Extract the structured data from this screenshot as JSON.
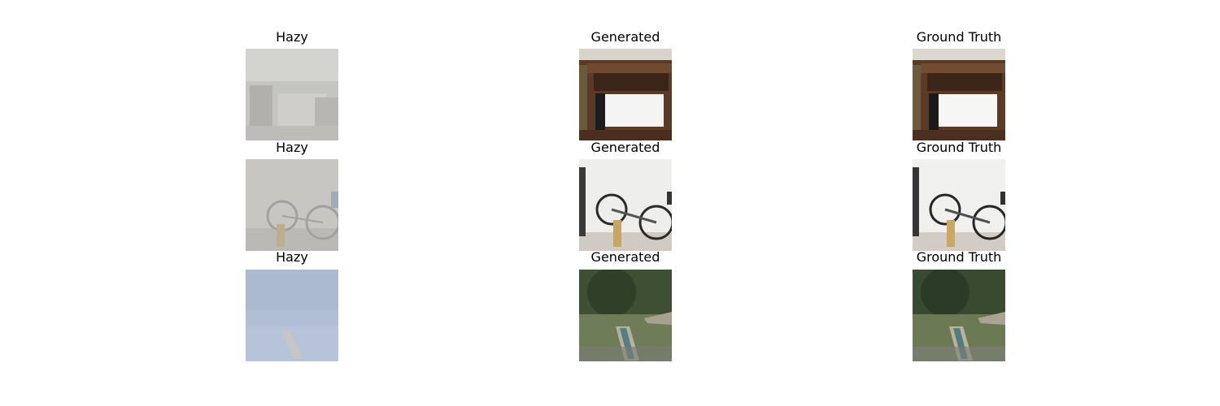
{
  "rows": [
    {
      "hazy": "Hazy",
      "generated": "Generated",
      "ground_truth": "Ground Truth"
    },
    {
      "hazy": "Hazy",
      "generated": "Generated",
      "ground_truth": "Ground Truth"
    },
    {
      "hazy": "Hazy",
      "generated": "Generated",
      "ground_truth": "Ground Truth"
    }
  ]
}
